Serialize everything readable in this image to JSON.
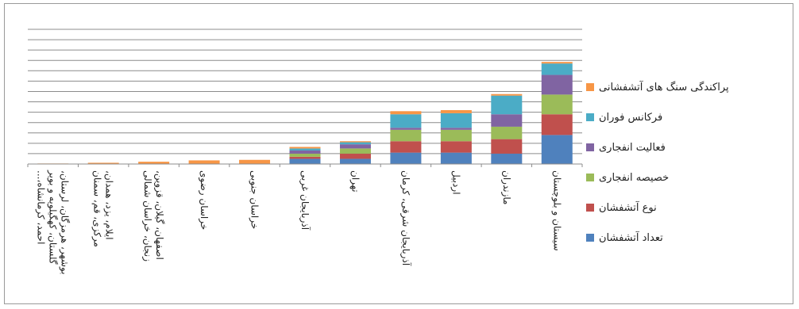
{
  "chart_data": {
    "type": "bar",
    "stacked": true,
    "orientation": "vertical",
    "grid": true,
    "legend_position": "right",
    "ylim": [
      0,
      13
    ],
    "categories": [
      "بوشهر، هرمزگان، لرستان، گلستان، کهگیلویه و بویر احمد، کرمانشاه،...",
      "ایلام، یزد، همدان، مرکزی، قم، سمنان",
      "اصفهان، گیلان، قزوین، زنجان، خراسان شمالی",
      "خراسان رضوی",
      "خراسان جنوبی",
      "آذربایجان غربی",
      "تهران",
      "آذربایجان شرقی، کرمان",
      "اردبیل",
      "مازندران",
      "سیستان و بلوچستان"
    ],
    "series": [
      {
        "name": "تعداد آتشفشان",
        "color": "#4f81bd",
        "values": [
          0,
          0,
          0,
          0,
          0,
          0.5,
          0.5,
          1.1,
          1.1,
          1.0,
          2.8
        ]
      },
      {
        "name": "نوع آتشفشان",
        "color": "#c0504d",
        "values": [
          0,
          0,
          0,
          0,
          0,
          0.2,
          0.5,
          1.1,
          1.1,
          1.4,
          2.0
        ]
      },
      {
        "name": "خصیصه انفجاری",
        "color": "#9bbb59",
        "values": [
          0,
          0,
          0,
          0,
          0,
          0.3,
          0.5,
          1.1,
          1.1,
          1.2,
          1.9
        ]
      },
      {
        "name": "فعالیت انفجاری",
        "color": "#8064a2",
        "values": [
          0,
          0,
          0,
          0,
          0,
          0.3,
          0.4,
          0.2,
          0.2,
          1.2,
          1.9
        ]
      },
      {
        "name": "فرکانس فوران",
        "color": "#4bacc6",
        "values": [
          0,
          0,
          0,
          0,
          0,
          0.2,
          0.2,
          1.3,
          1.4,
          1.8,
          1.1
        ]
      },
      {
        "name": "پراکندگی سنگ های آتشفشانی",
        "color": "#f79646",
        "values": [
          0.05,
          0.12,
          0.22,
          0.35,
          0.4,
          0.15,
          0.1,
          0.3,
          0.3,
          0.15,
          0.15
        ]
      }
    ]
  }
}
